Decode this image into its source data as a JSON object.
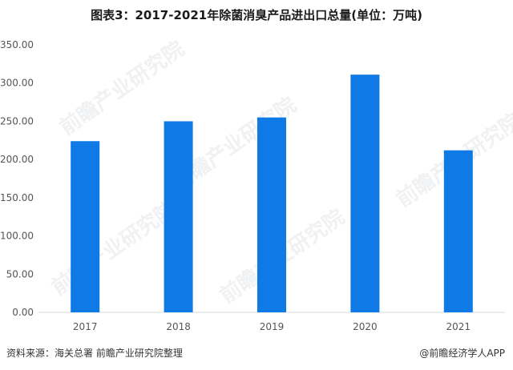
{
  "title": "图表3：2017-2021年除菌消臭产品进出口总量(单位：万吨)",
  "footer": {
    "source": "资料来源：海关总署  前瞻产业研究院整理",
    "credit": "@前瞻经济学人APP"
  },
  "watermark": "前瞻产业研究院",
  "colors": {
    "bar": "#0f7ae5",
    "grid": "#d9d9d9"
  },
  "chart_data": {
    "type": "bar",
    "title": "图表3：2017-2021年除菌消臭产品进出口总量(单位：万吨)",
    "categories": [
      "2017",
      "2018",
      "2019",
      "2020",
      "2021"
    ],
    "values": [
      224,
      250,
      255,
      311,
      212
    ],
    "ylim": [
      0,
      350
    ],
    "yticks": [
      "0.00",
      "50.00",
      "100.00",
      "150.00",
      "200.00",
      "250.00",
      "300.00",
      "350.00"
    ],
    "xlabel": "",
    "ylabel": "",
    "grid": false,
    "legend": "none"
  }
}
